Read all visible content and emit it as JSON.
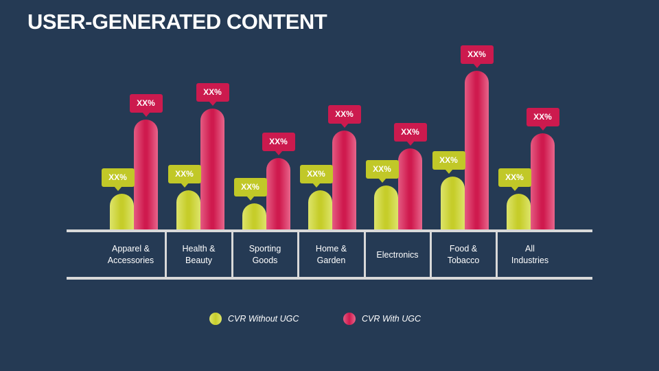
{
  "title": "USER-GENERATED CONTENT",
  "colors": {
    "background": "#253a54",
    "without_ugc": "#c6cd2a",
    "with_ugc": "#cf1a4e",
    "axis": "#d9d9d9"
  },
  "legend": [
    {
      "label": "CVR Without UGC",
      "color": "#c6cd2a"
    },
    {
      "label": "CVR With UGC",
      "color": "#cf1a4e"
    }
  ],
  "categories": [
    {
      "line1": "Apparel &",
      "line2": "Accessories"
    },
    {
      "line1": "Health &",
      "line2": "Beauty"
    },
    {
      "line1": "Sporting",
      "line2": "Goods"
    },
    {
      "line1": "Home &",
      "line2": "Garden"
    },
    {
      "line1": "Electronics",
      "line2": ""
    },
    {
      "line1": "Food &",
      "line2": "Tobacco"
    },
    {
      "line1": "All",
      "line2": "Industries"
    }
  ],
  "labels": {
    "without": [
      "XX%",
      "XX%",
      "XX%",
      "XX%",
      "XX%",
      "XX%",
      "XX%"
    ],
    "with": [
      "XX%",
      "XX%",
      "XX%",
      "XX%",
      "XX%",
      "XX%",
      "XX%"
    ]
  },
  "chart_data": {
    "type": "bar",
    "title": "USER-GENERATED CONTENT",
    "categories": [
      "Apparel & Accessories",
      "Health & Beauty",
      "Sporting Goods",
      "Home & Garden",
      "Electronics",
      "Food & Tobacco",
      "All Industries"
    ],
    "series": [
      {
        "name": "CVR Without UGC",
        "values": [
          52,
          57,
          38,
          57,
          64,
          77,
          52
        ],
        "data_labels": [
          "XX%",
          "XX%",
          "XX%",
          "XX%",
          "XX%",
          "XX%",
          "XX%"
        ]
      },
      {
        "name": "CVR With UGC",
        "values": [
          160,
          176,
          104,
          144,
          118,
          231,
          140
        ],
        "data_labels": [
          "XX%",
          "XX%",
          "XX%",
          "XX%",
          "XX%",
          "XX%",
          "XX%"
        ]
      }
    ],
    "value_note": "values are relative bar heights in px; actual values shown as placeholder XX%",
    "xlabel": "",
    "ylabel": "",
    "grid": false,
    "legend_position": "bottom"
  }
}
